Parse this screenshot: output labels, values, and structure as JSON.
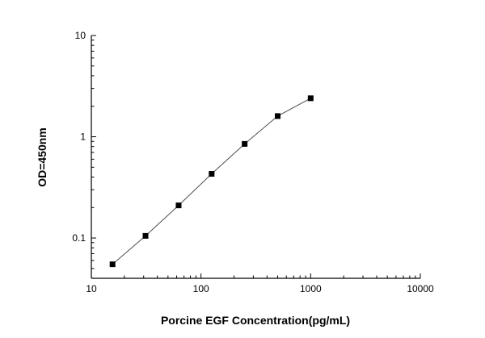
{
  "chart_data": {
    "type": "line",
    "title": "",
    "xlabel": "Porcine EGF Concentration(pg/mL)",
    "ylabel": "OD=450nm",
    "xscale": "log",
    "yscale": "log",
    "xlim": [
      10,
      10000
    ],
    "ylim": [
      0.04,
      10
    ],
    "x": [
      15.6,
      31.2,
      62.5,
      125,
      250,
      500,
      1000
    ],
    "y": [
      0.055,
      0.105,
      0.21,
      0.43,
      0.85,
      1.6,
      2.4
    ],
    "x_major_ticks": [
      10,
      100,
      1000,
      10000
    ],
    "x_major_tick_labels": [
      "10",
      "100",
      "1000",
      "10000"
    ],
    "y_major_ticks": [
      0.1,
      1,
      10
    ],
    "y_major_tick_labels": [
      "0.1",
      "1",
      "10"
    ],
    "grid": "off",
    "legend": "none",
    "colors": {
      "background": "#ffffff",
      "axis": "#000000",
      "line": "#4d4d4d",
      "marker": "#000000"
    }
  }
}
